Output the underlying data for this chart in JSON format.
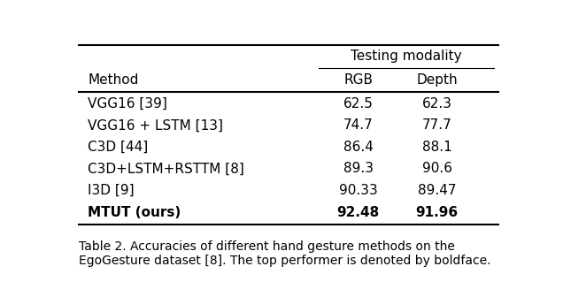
{
  "title_group": "Testing modality",
  "col_headers": [
    "Method",
    "RGB",
    "Depth"
  ],
  "rows": [
    [
      "VGG16 [39]",
      "62.5",
      "62.3"
    ],
    [
      "VGG16 + LSTM [13]",
      "74.7",
      "77.7"
    ],
    [
      "C3D [44]",
      "86.4",
      "88.1"
    ],
    [
      "C3D+LSTM+RSTTM [8]",
      "89.3",
      "90.6"
    ],
    [
      "I3D [9]",
      "90.33",
      "89.47"
    ],
    [
      "MTUT (ours)",
      "92.48",
      "91.96"
    ]
  ],
  "bold_row_index": 5,
  "caption": "Table 2. Accuracies of different hand gesture methods on the\nEgoGesture dataset [8]. The top performer is denoted by boldface.",
  "bg_color": "#ffffff",
  "text_color": "#000000",
  "font_size": 11,
  "caption_font_size": 10
}
